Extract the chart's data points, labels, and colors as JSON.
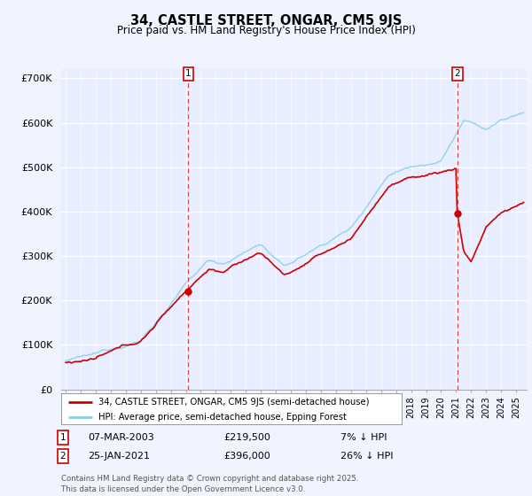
{
  "title": "34, CASTLE STREET, ONGAR, CM5 9JS",
  "subtitle": "Price paid vs. HM Land Registry's House Price Index (HPI)",
  "ylabel_ticks": [
    "£0",
    "£100K",
    "£200K",
    "£300K",
    "£400K",
    "£500K",
    "£600K",
    "£700K"
  ],
  "ytick_values": [
    0,
    100000,
    200000,
    300000,
    400000,
    500000,
    600000,
    700000
  ],
  "ylim": [
    0,
    720000
  ],
  "background_color": "#f0f4ff",
  "plot_bg_color": "#e8eeff",
  "grid_color": "#ffffff",
  "hpi_color": "#87CEEB",
  "price_color": "#cc0000",
  "dashed_color": "#dd4444",
  "sale1": {
    "date": "07-MAR-2003",
    "price": 219500,
    "label": "1",
    "pct": "7%",
    "direction": "↓",
    "x": 2003.17
  },
  "sale2": {
    "date": "25-JAN-2021",
    "price": 396000,
    "label": "2",
    "pct": "26%",
    "direction": "↓",
    "x": 2021.08
  },
  "legend_line1": "34, CASTLE STREET, ONGAR, CM5 9JS (semi-detached house)",
  "legend_line2": "HPI: Average price, semi-detached house, Epping Forest",
  "footer": "Contains HM Land Registry data © Crown copyright and database right 2025.\nThis data is licensed under the Open Government Licence v3.0.",
  "x_start_year": 1995,
  "x_end_year": 2025
}
